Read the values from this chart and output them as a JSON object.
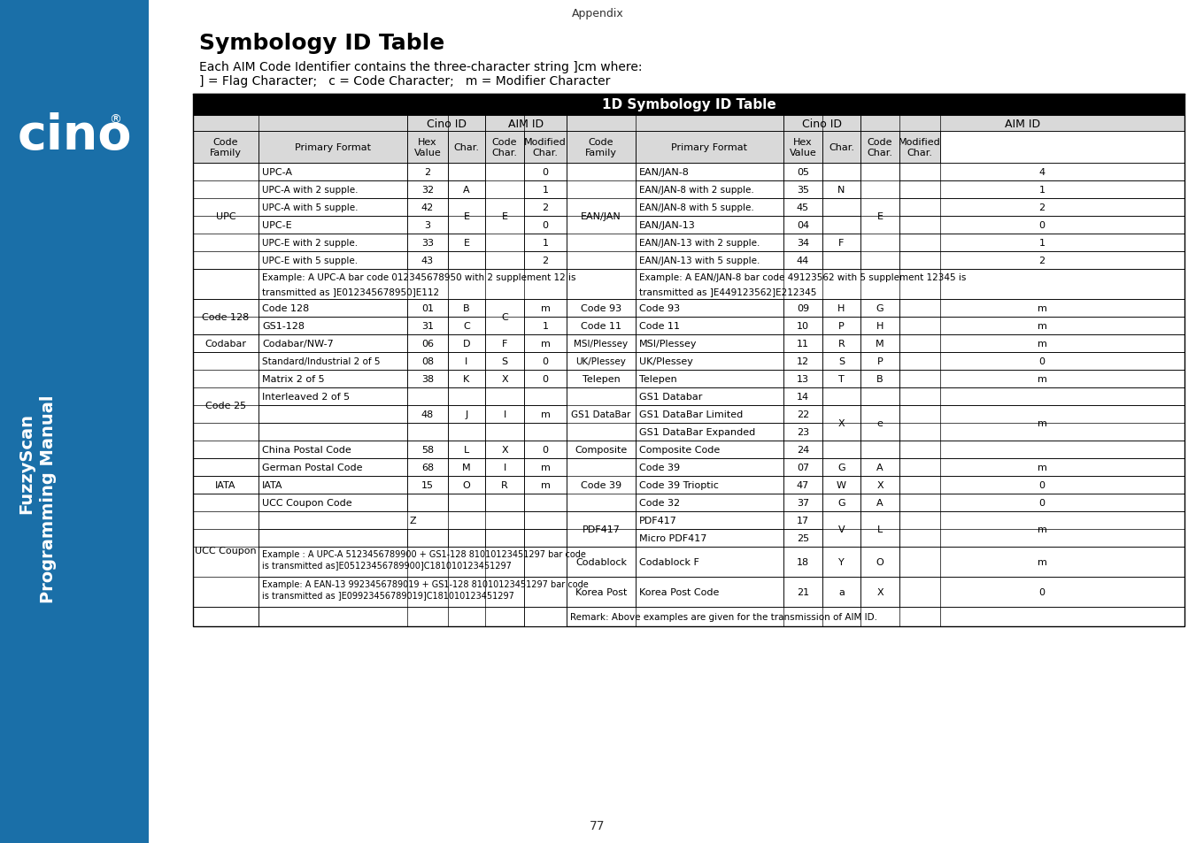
{
  "title": "Symbology ID Table",
  "appendix_text": "Appendix",
  "subtitle1": "Each AIM Code Identifier contains the three-character string ]cm where:",
  "subtitle2": "] = Flag Character;   c = Code Character;   m = Modifier Character",
  "table_title": "1D Symbology ID Table",
  "sidebar_color": "#1a6fa8",
  "header_bg": "#000000",
  "header_fg": "#ffffff",
  "subheader_bg": "#d9d9d9",
  "white": "#ffffff",
  "border": "#000000",
  "page_num": "77"
}
